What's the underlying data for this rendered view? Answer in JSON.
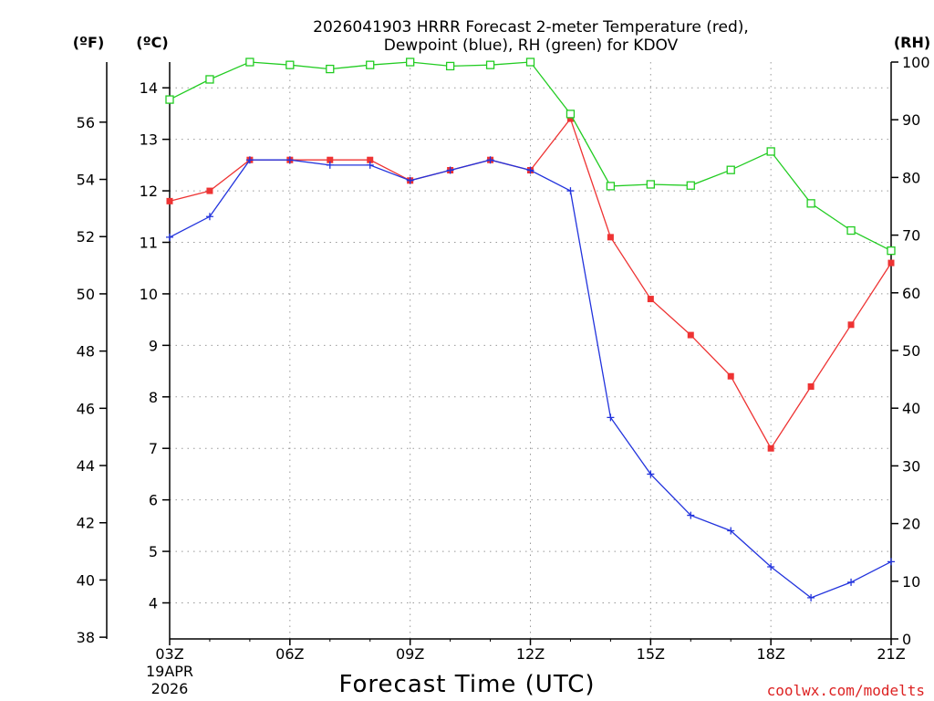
{
  "chart_data": {
    "type": "line",
    "title_line1": "2026041903 HRRR Forecast 2-meter Temperature (red),",
    "title_line2": "Dewpoint (blue), RH (green) for KDOV",
    "xlabel": "Forecast Time (UTC)",
    "date_label_line1": "19APR",
    "date_label_line2": "2026",
    "unit_fahrenheit": "(ºF)",
    "unit_celsius": "(ºC)",
    "unit_rh": "(RH)",
    "credit": "coolwx.com/modelts",
    "x_hours": [
      3,
      4,
      5,
      6,
      7,
      8,
      9,
      10,
      11,
      12,
      13,
      14,
      15,
      16,
      17,
      18,
      19,
      20,
      21
    ],
    "x_ticks": [
      {
        "hour": 3,
        "label": "03Z"
      },
      {
        "hour": 6,
        "label": "06Z"
      },
      {
        "hour": 9,
        "label": "09Z"
      },
      {
        "hour": 12,
        "label": "12Z"
      },
      {
        "hour": 15,
        "label": "15Z"
      },
      {
        "hour": 18,
        "label": "18Z"
      },
      {
        "hour": 21,
        "label": "21Z"
      }
    ],
    "xlim": [
      3,
      21
    ],
    "celsius_lim": [
      3.3,
      14.5
    ],
    "celsius_ticks": [
      4,
      5,
      6,
      7,
      8,
      9,
      10,
      11,
      12,
      13,
      14
    ],
    "fahrenheit_ticks": [
      38,
      40,
      42,
      44,
      46,
      48,
      50,
      52,
      54,
      56
    ],
    "rh_lim": [
      0,
      100
    ],
    "rh_ticks": [
      0,
      10,
      20,
      30,
      40,
      50,
      60,
      70,
      80,
      90,
      100
    ],
    "grid": true,
    "series": [
      {
        "name": "Temperature",
        "axis": "celsius",
        "color": "#ee3333",
        "marker": "filled-square",
        "values": [
          11.8,
          12.0,
          12.6,
          12.6,
          12.6,
          12.6,
          12.2,
          12.4,
          12.6,
          12.4,
          13.4,
          11.1,
          9.9,
          9.2,
          8.4,
          7.0,
          8.2,
          9.4,
          10.6
        ]
      },
      {
        "name": "Dewpoint",
        "axis": "celsius",
        "color": "#2233dd",
        "marker": "plus",
        "values": [
          11.1,
          11.5,
          12.6,
          12.6,
          12.5,
          12.5,
          12.2,
          12.4,
          12.6,
          12.4,
          12.0,
          7.6,
          6.5,
          5.7,
          5.4,
          4.7,
          4.1,
          4.4,
          4.8
        ]
      },
      {
        "name": "RH",
        "axis": "rh",
        "color": "#22cc22",
        "marker": "open-square",
        "values": [
          93.5,
          97.0,
          100.0,
          99.5,
          98.8,
          99.5,
          100.0,
          99.3,
          99.5,
          100.0,
          91.0,
          78.5,
          78.8,
          78.6,
          81.3,
          84.5,
          75.5,
          70.8,
          67.3
        ]
      }
    ]
  }
}
